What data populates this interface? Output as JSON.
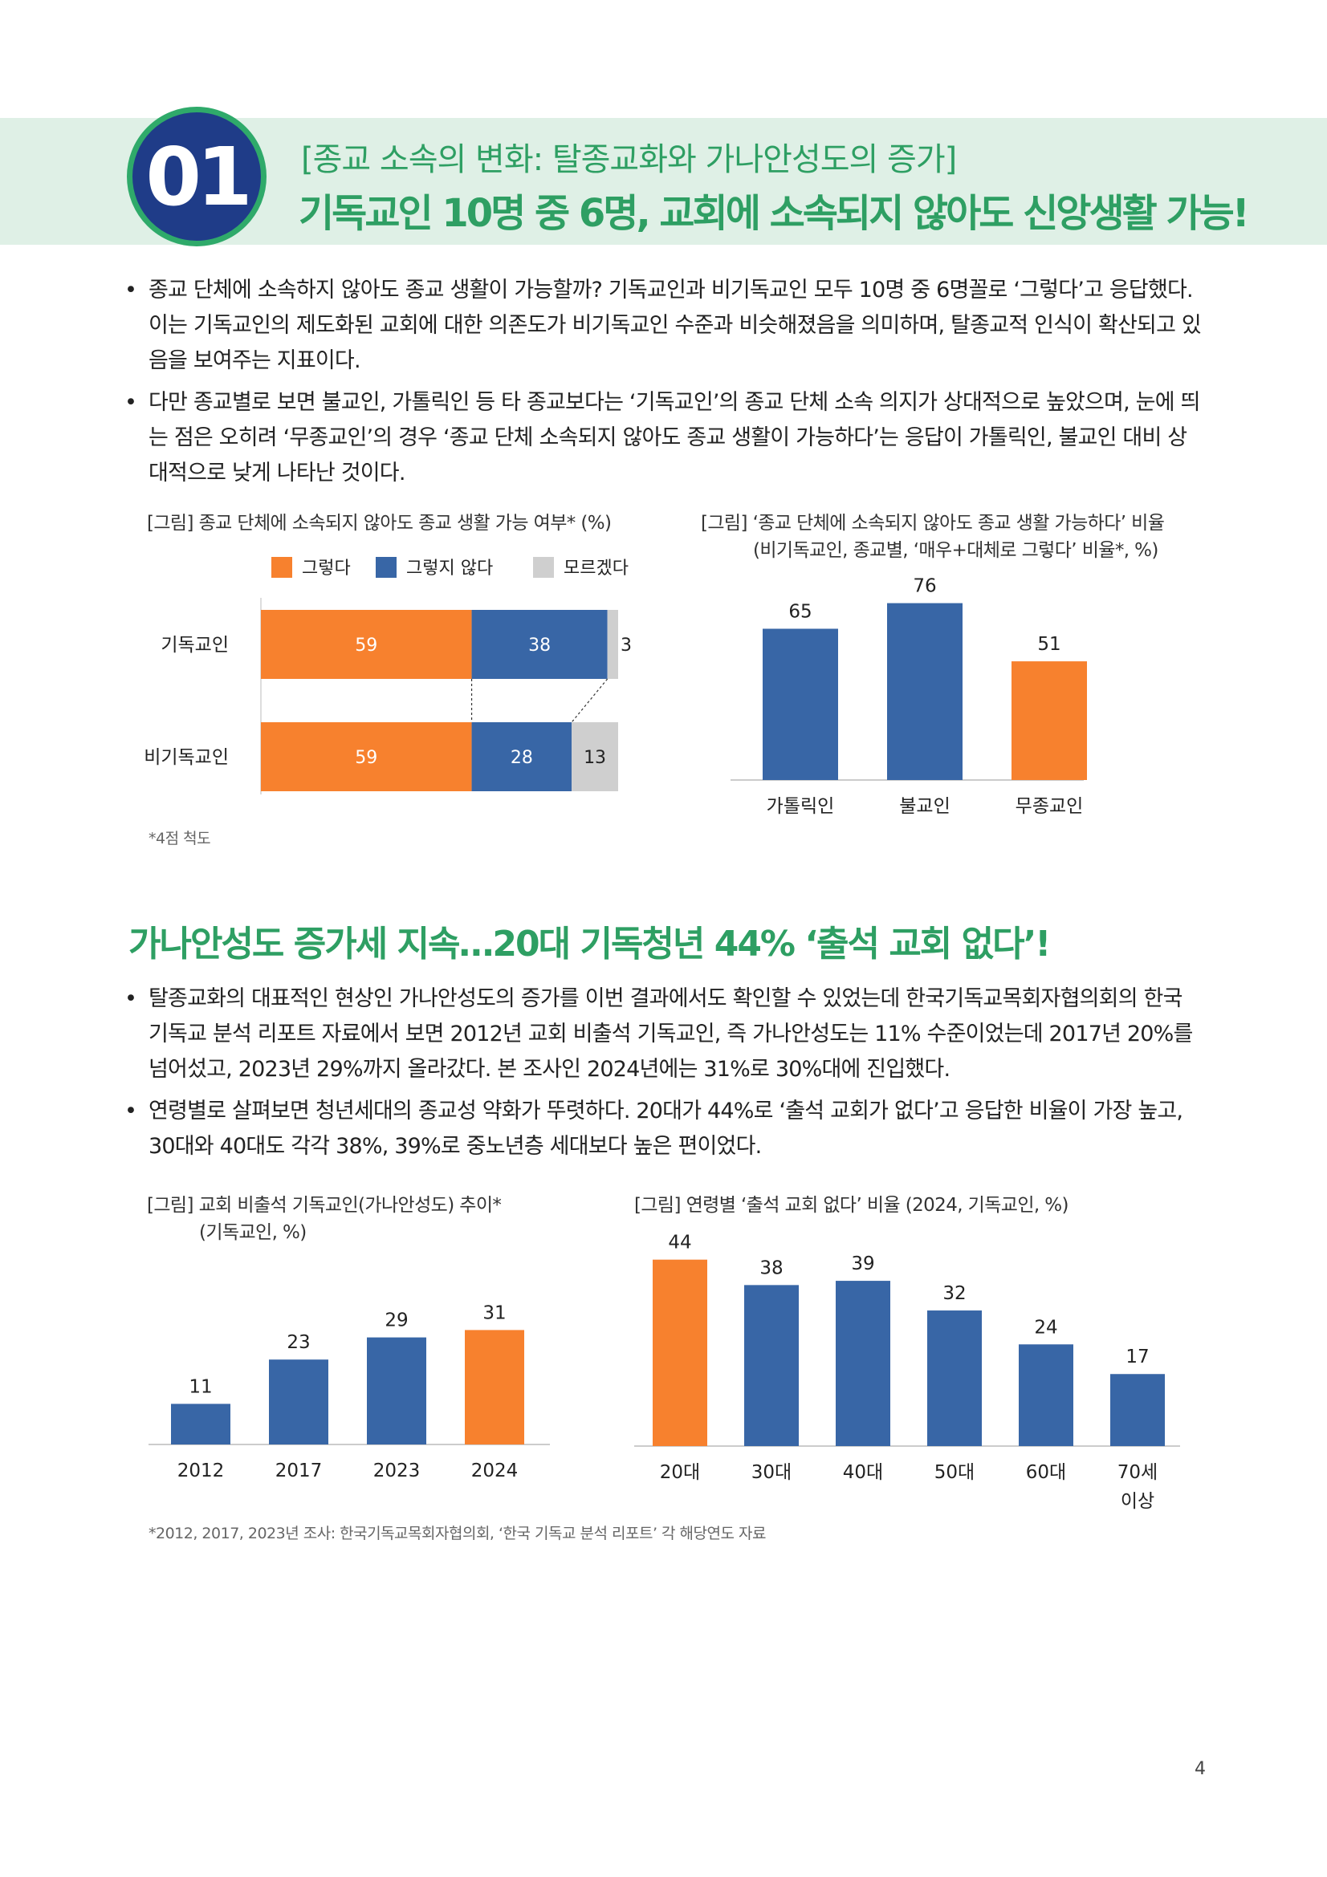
{
  "section": {
    "number": "01",
    "kicker": "[종교 소속의 변화: 탈종교화와 가나안성도의 증가]",
    "headline": "기독교인 10명 중 6명, 교회에 소속되지 않아도 신앙생활 가능!"
  },
  "bullets1": [
    "종교 단체에 소속하지 않아도 종교 생활이 가능할까? 기독교인과 비기독교인 모두 10명 중 6명꼴로 ‘그렇다’고 응답했다. 이는 기독교인의 제도화된 교회에 대한 의존도가 비기독교인 수준과 비슷해졌음을 의미하며, 탈종교적 인식이 확산되고 있음을 보여주는 지표이다.",
    "다만 종교별로 보면 불교인, 가톨릭인 등 타 종교보다는 ‘기독교인’의 종교 단체 소속 의지가 상대적으로 높았으며, 눈에 띄는 점은 오히려 ‘무종교인’의 경우 ‘종교 단체 소속되지 않아도 종교 생활이 가능하다’는 응답이 가톨릭인, 불교인 대비 상대적으로 낮게 나타난 것이다."
  ],
  "subheadline": "가나안성도 증가세 지속…20대 기독청년 44% ‘출석 교회 없다’!",
  "bullets2": [
    "탈종교화의 대표적인 현상인 가나안성도의 증가를 이번 결과에서도 확인할 수 있었는데 한국기독교목회자협의회의 한국 기독교 분석 리포트 자료에서 보면 2012년 교회 비출석 기독교인, 즉 가나안성도는 11% 수준이었는데 2017년 20%를 넘어섰고, 2023년 29%까지 올라갔다. 본 조사인 2024년에는 31%로 30%대에 진입했다.",
    "연령별로 살펴보면 청년세대의 종교성 약화가 뚜렷하다. 20대가 44%로 ‘출석 교회가 없다’고 응답한 비율이 가장 높고, 30대와 40대도 각각 38%, 39%로 중노년층 세대보다 높은 편이었다."
  ],
  "chart_data": [
    {
      "type": "bar",
      "orientation": "horizontal",
      "stacked": true,
      "title": "[그림] 종교 단체에 소속되지 않아도 종교 생활 가능 여부* (%)",
      "categories": [
        "기독교인",
        "비기독교인"
      ],
      "series": [
        {
          "name": "그렇다",
          "values": [
            59,
            59
          ],
          "color": "#f7812e"
        },
        {
          "name": "그렇지 않다",
          "values": [
            38,
            28
          ],
          "color": "#3866a6"
        },
        {
          "name": "모르겠다",
          "values": [
            3,
            13
          ],
          "color": "#cfcfcf"
        }
      ],
      "legend": "top",
      "note": "*4점 척도"
    },
    {
      "type": "bar",
      "title_line1": "[그림] ‘종교 단체에 소속되지 않아도 종교 생활 가능하다’ 비율",
      "title_line2": "(비기독교인, 종교별, ‘매우+대체로 그렇다’ 비율*, %)",
      "categories": [
        "가톨릭인",
        "불교인",
        "무종교인"
      ],
      "values": [
        65,
        76,
        51
      ],
      "colors": [
        "#3866a6",
        "#3866a6",
        "#f7812e"
      ],
      "ylim": [
        0,
        100
      ]
    },
    {
      "type": "bar",
      "title_line1": "[그림] 교회 비출석 기독교인(가나안성도) 추이*",
      "title_line2": "(기독교인, %)",
      "categories": [
        "2012",
        "2017",
        "2023",
        "2024"
      ],
      "values": [
        11,
        23,
        29,
        31
      ],
      "colors": [
        "#3866a6",
        "#3866a6",
        "#3866a6",
        "#f7812e"
      ],
      "ylim": [
        0,
        50
      ]
    },
    {
      "type": "bar",
      "title": "[그림] 연령별 ‘출석 교회 없다’ 비율 (2024, 기독교인, %)",
      "categories": [
        "20대",
        "30대",
        "40대",
        "50대",
        "60대",
        "70세|이상"
      ],
      "values": [
        44,
        38,
        39,
        32,
        24,
        17
      ],
      "colors": [
        "#f7812e",
        "#3866a6",
        "#3866a6",
        "#3866a6",
        "#3866a6",
        "#3866a6"
      ],
      "ylim": [
        0,
        50
      ]
    }
  ],
  "source_note": "*2012, 2017, 2023년 조사: 한국기독교목회자협의회, ‘한국 기독교 분석 리포트’ 각 해당연도 자료",
  "page_number": "4"
}
